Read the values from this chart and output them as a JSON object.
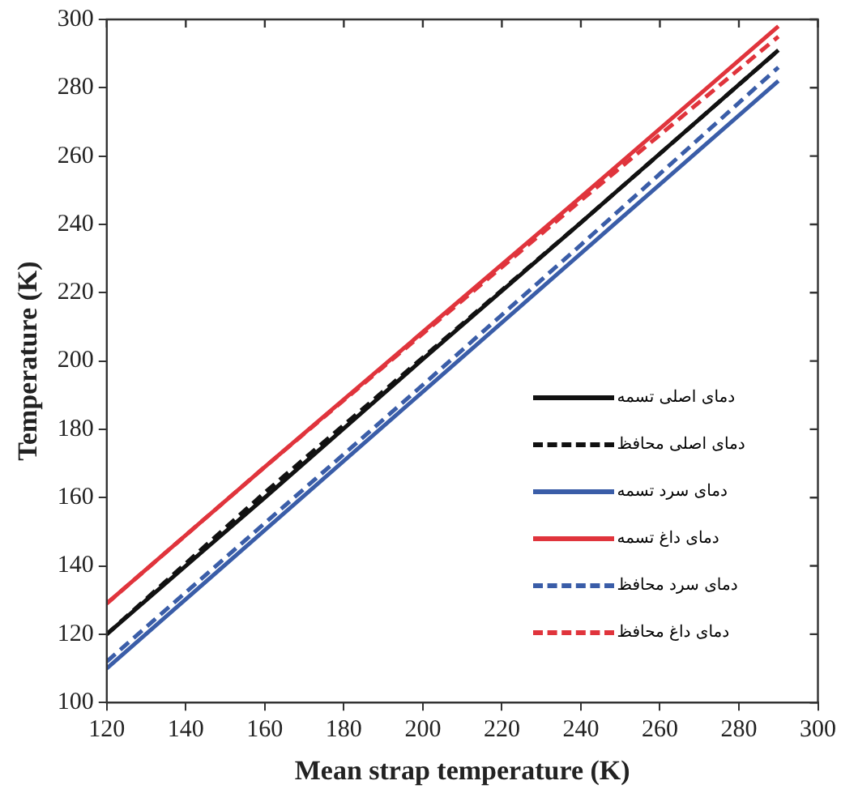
{
  "chart_data": {
    "type": "line",
    "xlabel": "Mean strap temperature (K)",
    "ylabel": "Temperature (K)",
    "x": [
      120,
      160,
      200,
      240,
      290
    ],
    "series": [
      {
        "name": "دمای اصلی تسمه",
        "color": "#111111",
        "line_style": "solid",
        "values": [
          120,
          160,
          200.5,
          240.5,
          291
        ]
      },
      {
        "name": "دمای اصلی محافظ",
        "color": "#111111",
        "line_style": "dashed",
        "values": [
          120,
          161.5,
          201,
          240.5,
          291
        ]
      },
      {
        "name": "دمای سرد تسمه",
        "color": "#3a5da8",
        "line_style": "solid",
        "values": [
          110,
          150.5,
          191,
          231.5,
          282
        ]
      },
      {
        "name": "دمای داغ تسمه",
        "color": "#e0343c",
        "line_style": "solid",
        "values": [
          129,
          169,
          208.5,
          248,
          298
        ]
      },
      {
        "name": "دمای سرد محافظ",
        "color": "#3a5da8",
        "line_style": "dashed",
        "values": [
          112,
          152.5,
          193,
          234,
          286
        ]
      },
      {
        "name": "دمای داغ محافظ",
        "color": "#e0343c",
        "line_style": "dashed",
        "values": [
          129,
          169,
          208,
          247,
          295
        ]
      }
    ],
    "xlim": [
      120,
      300
    ],
    "xticks": [
      120,
      140,
      160,
      180,
      200,
      220,
      240,
      260,
      280,
      300
    ],
    "ylim": [
      100,
      300
    ],
    "yticks": [
      100,
      120,
      140,
      160,
      180,
      200,
      220,
      240,
      260,
      280,
      300
    ],
    "grid": false,
    "legend": "right",
    "marker": "none"
  }
}
